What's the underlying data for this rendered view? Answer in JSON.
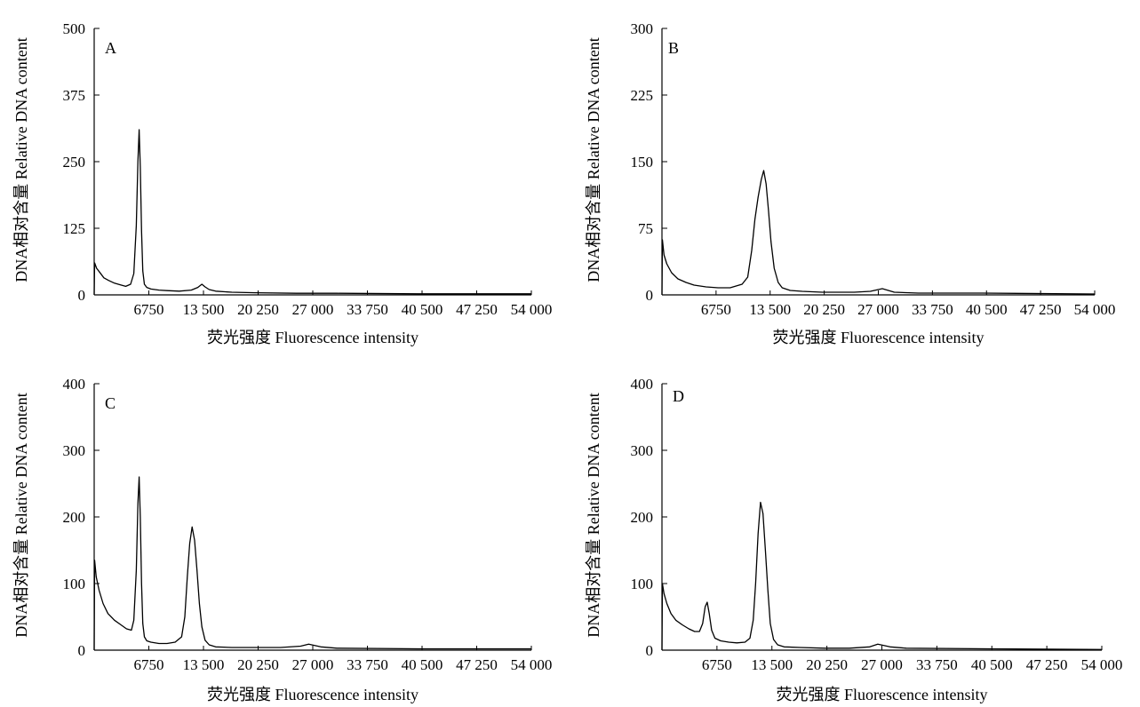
{
  "chart_data": [
    {
      "type": "line",
      "panel_label": "A",
      "xlabel": "荧光强度 Fluorescence intensity",
      "ylabel": "DNA相对含量 Relative DNA content",
      "xlim": [
        0,
        54000
      ],
      "ylim": [
        0,
        500
      ],
      "y_ticks": [
        "0",
        "125",
        "250",
        "375",
        "500"
      ],
      "x_ticks": [
        "6750",
        "13 500",
        "20 250",
        "27 000",
        "33 750",
        "40 500",
        "47 250",
        "54 000"
      ],
      "x_tick_values": [
        6750,
        13500,
        20250,
        27000,
        33750,
        40500,
        47250,
        54000
      ],
      "series": [
        {
          "x": [
            0,
            50,
            300,
            700,
            1200,
            1800,
            2500,
            3200,
            3900,
            4500,
            4900,
            5200,
            5400,
            5550,
            5700,
            5850,
            6000,
            6200,
            6500,
            7000,
            8000,
            9000,
            10500,
            12000,
            12800,
            13300,
            13700,
            14200,
            15000,
            17000,
            20000,
            25000,
            30000,
            40000,
            54000
          ],
          "y": [
            0,
            60,
            50,
            42,
            32,
            27,
            22,
            19,
            16,
            20,
            40,
            130,
            250,
            310,
            240,
            120,
            45,
            20,
            14,
            11,
            9,
            8,
            7,
            9,
            14,
            20,
            15,
            10,
            7,
            5,
            4,
            3,
            3,
            2,
            2
          ]
        }
      ]
    },
    {
      "type": "line",
      "panel_label": "B",
      "xlabel": "荧光强度 Fluorescence intensity",
      "ylabel": "DNA相对含量 Relative DNA content",
      "xlim": [
        0,
        54000
      ],
      "ylim": [
        0,
        300
      ],
      "y_ticks": [
        "0",
        "75",
        "150",
        "225",
        "300"
      ],
      "x_ticks": [
        "6750",
        "13 500",
        "20 250",
        "27 000",
        "33 750",
        "40 500",
        "47 250",
        "54 000"
      ],
      "x_tick_values": [
        6750,
        13500,
        20250,
        27000,
        33750,
        40500,
        47250,
        54000
      ],
      "series": [
        {
          "x": [
            0,
            60,
            250,
            600,
            1200,
            2000,
            3000,
            4000,
            5500,
            7000,
            8500,
            10000,
            10700,
            11200,
            11600,
            12000,
            12400,
            12700,
            13000,
            13300,
            13600,
            14000,
            14500,
            15000,
            16000,
            17500,
            20000,
            24000,
            26000,
            27500,
            29000,
            32000,
            40000,
            54000
          ],
          "y": [
            0,
            62,
            45,
            35,
            25,
            18,
            14,
            11,
            9,
            8,
            8,
            12,
            20,
            50,
            85,
            110,
            130,
            140,
            125,
            95,
            60,
            30,
            14,
            8,
            5,
            4,
            3,
            3,
            4,
            7,
            3,
            2,
            2,
            1
          ]
        }
      ]
    },
    {
      "type": "line",
      "panel_label": "C",
      "xlabel": "荧光强度 Fluorescence intensity",
      "ylabel": "DNA相对含量 Relative DNA content",
      "xlim": [
        0,
        54000
      ],
      "ylim": [
        0,
        400
      ],
      "y_ticks": [
        "0",
        "100",
        "200",
        "300",
        "400"
      ],
      "x_ticks": [
        "6750",
        "13 500",
        "20 250",
        "27 000",
        "33 750",
        "40 500",
        "47 250",
        "54 000"
      ],
      "x_tick_values": [
        6750,
        13500,
        20250,
        27000,
        33750,
        40500,
        47250,
        54000
      ],
      "series": [
        {
          "x": [
            0,
            60,
            250,
            600,
            1100,
            1700,
            2500,
            3300,
            4000,
            4600,
            4900,
            5200,
            5400,
            5550,
            5700,
            5850,
            6000,
            6200,
            6500,
            7000,
            8000,
            9000,
            10000,
            10800,
            11200,
            11500,
            11800,
            12100,
            12400,
            12700,
            13000,
            13300,
            13700,
            14200,
            15000,
            17000,
            19000,
            23000,
            25500,
            26500,
            28000,
            30000,
            40000,
            54000
          ],
          "y": [
            0,
            135,
            110,
            90,
            70,
            55,
            45,
            38,
            32,
            30,
            45,
            120,
            220,
            260,
            200,
            100,
            40,
            20,
            14,
            12,
            10,
            10,
            12,
            20,
            50,
            110,
            160,
            185,
            165,
            120,
            70,
            35,
            15,
            8,
            5,
            4,
            4,
            4,
            6,
            9,
            5,
            3,
            2,
            2
          ]
        }
      ]
    },
    {
      "type": "line",
      "panel_label": "D",
      "xlabel": "荧光强度 Fluorescence intensity",
      "ylabel": "DNA相对含量 Relative DNA content",
      "xlim": [
        0,
        54000
      ],
      "ylim": [
        0,
        400
      ],
      "y_ticks": [
        "0",
        "100",
        "200",
        "300",
        "400"
      ],
      "x_ticks": [
        "6750",
        "13 500",
        "20 250",
        "27 000",
        "33 750",
        "40 500",
        "47 250",
        "54 000"
      ],
      "x_tick_values": [
        6750,
        13500,
        20250,
        27000,
        33750,
        40500,
        47250,
        54000
      ],
      "series": [
        {
          "x": [
            0,
            60,
            250,
            600,
            1100,
            1700,
            2500,
            3300,
            4000,
            4600,
            5000,
            5300,
            5550,
            5800,
            6100,
            6500,
            7200,
            8200,
            9200,
            10200,
            10800,
            11200,
            11500,
            11800,
            12100,
            12400,
            12700,
            13000,
            13300,
            13700,
            14200,
            15000,
            17000,
            20000,
            23000,
            25500,
            26500,
            28000,
            30000,
            40000,
            54000
          ],
          "y": [
            0,
            100,
            85,
            70,
            55,
            45,
            38,
            32,
            28,
            28,
            40,
            65,
            72,
            55,
            30,
            18,
            14,
            12,
            11,
            12,
            18,
            45,
            100,
            175,
            222,
            205,
            150,
            90,
            40,
            16,
            8,
            5,
            4,
            3,
            3,
            5,
            9,
            5,
            3,
            2,
            1
          ]
        }
      ]
    }
  ]
}
